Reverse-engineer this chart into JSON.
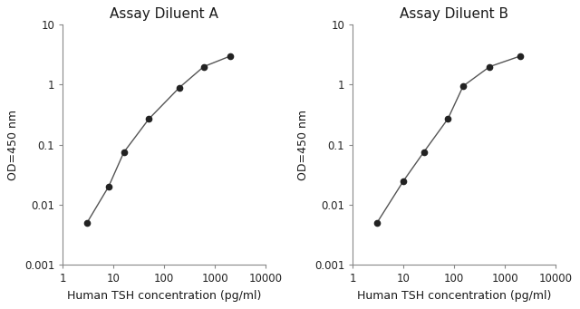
{
  "title_A": "Assay Diluent A",
  "title_B": "Assay Diluent B",
  "xlabel": "Human TSH concentration (pg/ml)",
  "ylabel": "OD=450 nm",
  "x_A": [
    3,
    8,
    16,
    50,
    200,
    600,
    2000
  ],
  "y_A": [
    0.005,
    0.02,
    0.075,
    0.27,
    0.9,
    2.0,
    3.0
  ],
  "x_B": [
    3,
    10,
    25,
    75,
    150,
    500,
    2000
  ],
  "y_B": [
    0.005,
    0.025,
    0.075,
    0.27,
    0.95,
    2.0,
    3.0
  ],
  "xlim": [
    1,
    10000
  ],
  "ylim": [
    0.001,
    10
  ],
  "line_color": "#555555",
  "marker_color": "#222222",
  "bg_color": "#ffffff",
  "title_fontsize": 11,
  "label_fontsize": 9,
  "tick_fontsize": 8.5
}
